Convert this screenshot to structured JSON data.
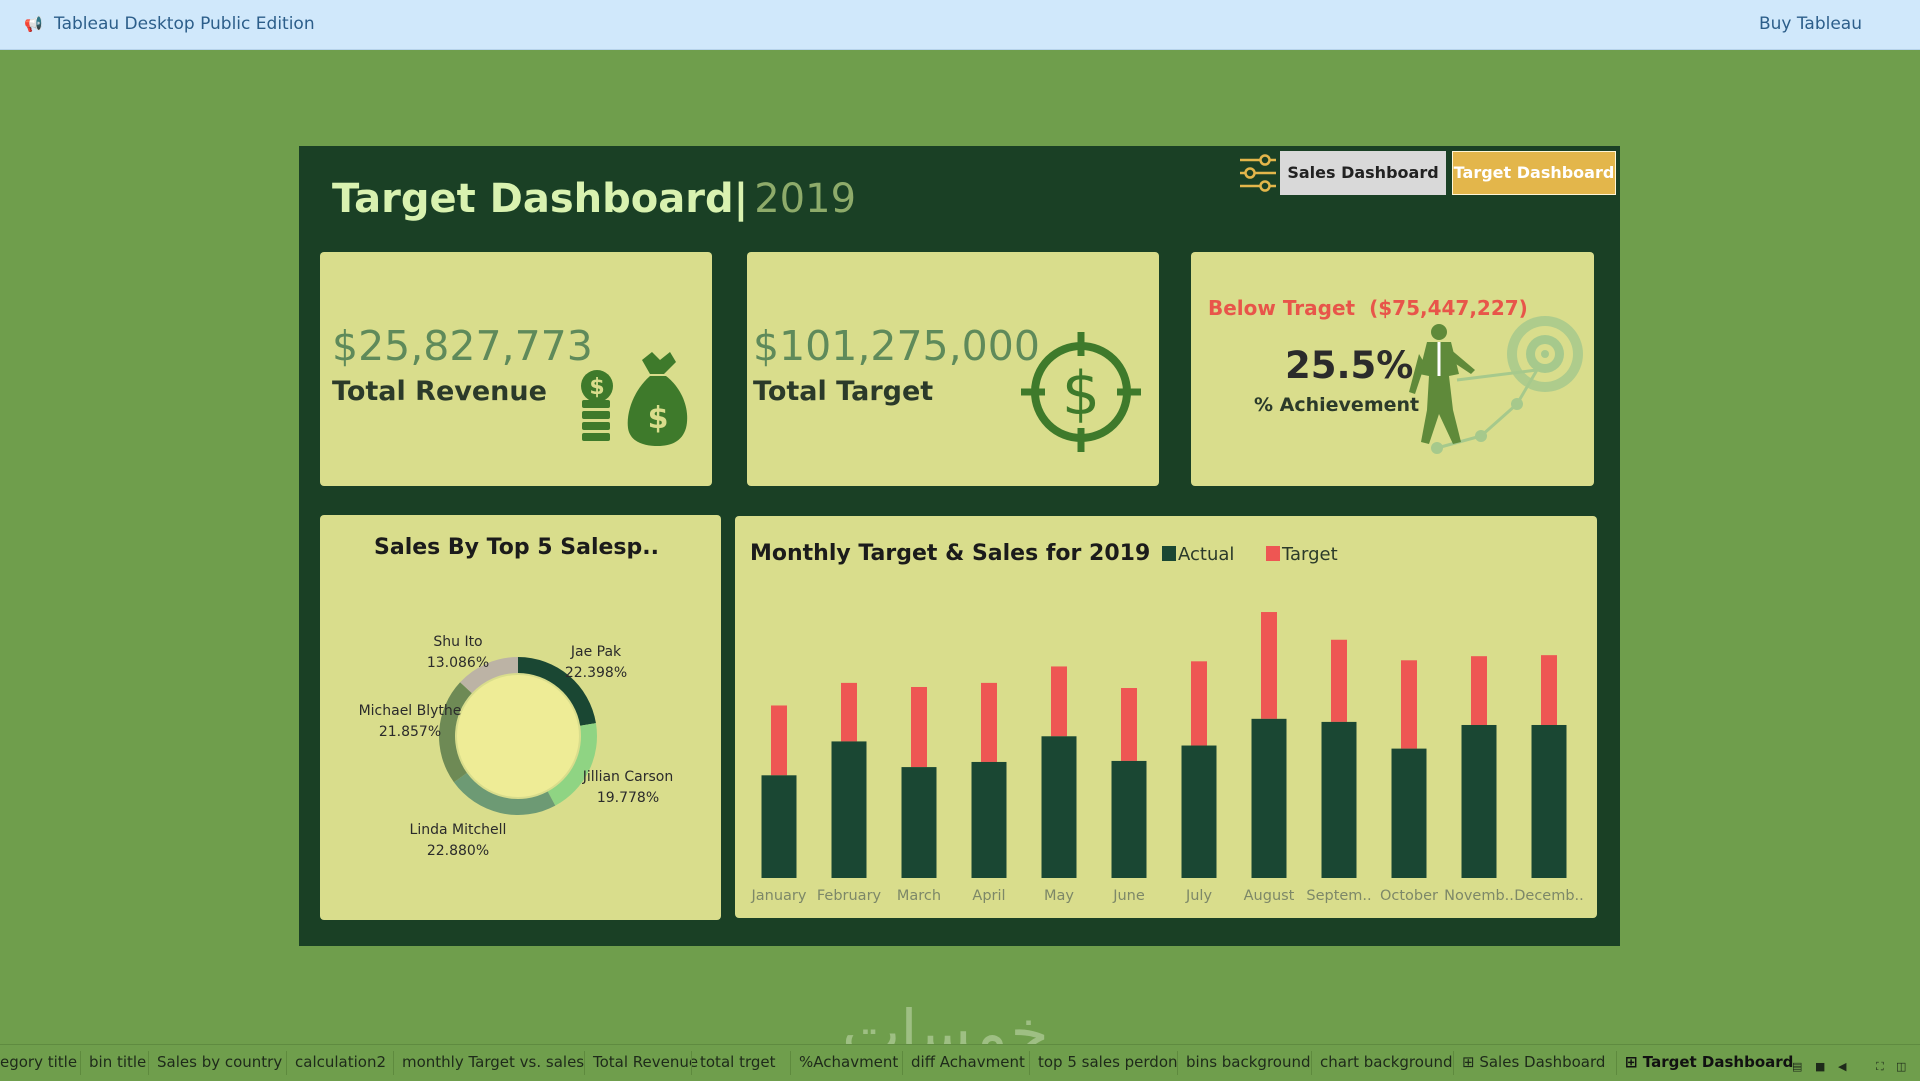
{
  "topbar": {
    "app_title": "Tableau Desktop Public Edition",
    "buy_label": "Buy Tableau"
  },
  "dashboard": {
    "title": "Target Dashboard|",
    "year": "2019",
    "nav": {
      "sales_label": "Sales Dashboard",
      "target_label": "Target Dashboard"
    },
    "colors": {
      "background": "#1a4025",
      "card": "#d9dd8c",
      "accent": "#e3b64b",
      "actual": "#1a4733",
      "target": "#ee5653"
    }
  },
  "kpis": {
    "revenue": {
      "value": "$25,827,773",
      "label": "Total Revenue",
      "icon": "money-bag-icon"
    },
    "target": {
      "value": "$101,275,000",
      "label": "Total Target",
      "icon": "dollar-target-icon"
    },
    "achievement": {
      "status": "Below Traget",
      "gap": "($75,447,227)",
      "value": "25.5%",
      "label": "% Achievement",
      "icon": "businessman-target-icon"
    }
  },
  "donut": {
    "title": "Sales By Top 5 Salesp..",
    "slices": [
      {
        "name": "Jae Pak",
        "pct": "22.398%",
        "value": 22.398,
        "color": "#1a4733"
      },
      {
        "name": "Jillian Carson",
        "pct": "19.778%",
        "value": 19.778,
        "color": "#8fd483"
      },
      {
        "name": "Linda Mitchell",
        "pct": "22.880%",
        "value": 22.88,
        "color": "#6d9a74"
      },
      {
        "name": "Michael Blythe",
        "pct": "21.857%",
        "value": 21.857,
        "color": "#6e8a55"
      },
      {
        "name": "Shu Ito",
        "pct": "13.086%",
        "value": 13.086,
        "color": "#bcb3a5"
      }
    ]
  },
  "chart_data": {
    "type": "bar",
    "title": "Monthly Target & Sales for 2019",
    "categories": [
      "January",
      "February",
      "March",
      "April",
      "May",
      "June",
      "July",
      "August",
      "Septem..",
      "October",
      "Novemb..",
      "Decemb.."
    ],
    "series": [
      {
        "name": "Actual",
        "color": "#1a4733",
        "values": [
          100,
          133,
          108,
          113,
          138,
          114,
          129,
          155,
          152,
          126,
          149,
          149
        ]
      },
      {
        "name": "Target",
        "color": "#ee5653",
        "values": [
          168,
          190,
          186,
          190,
          206,
          185,
          211,
          259,
          232,
          212,
          216,
          217
        ]
      }
    ],
    "ylim": [
      0,
      260
    ],
    "grid": false,
    "legend": "top"
  },
  "tabs": [
    "egory title",
    "bin title",
    "Sales by country",
    "calculation2",
    "monthly Target vs.  sales",
    "Total Revenue",
    "total trget",
    "%Achavment",
    "diff Achavment",
    "top 5 sales perdon",
    "bins background",
    "chart background",
    "Sales Dashboard",
    "Target Dashboard"
  ],
  "watermark": "خمسات"
}
